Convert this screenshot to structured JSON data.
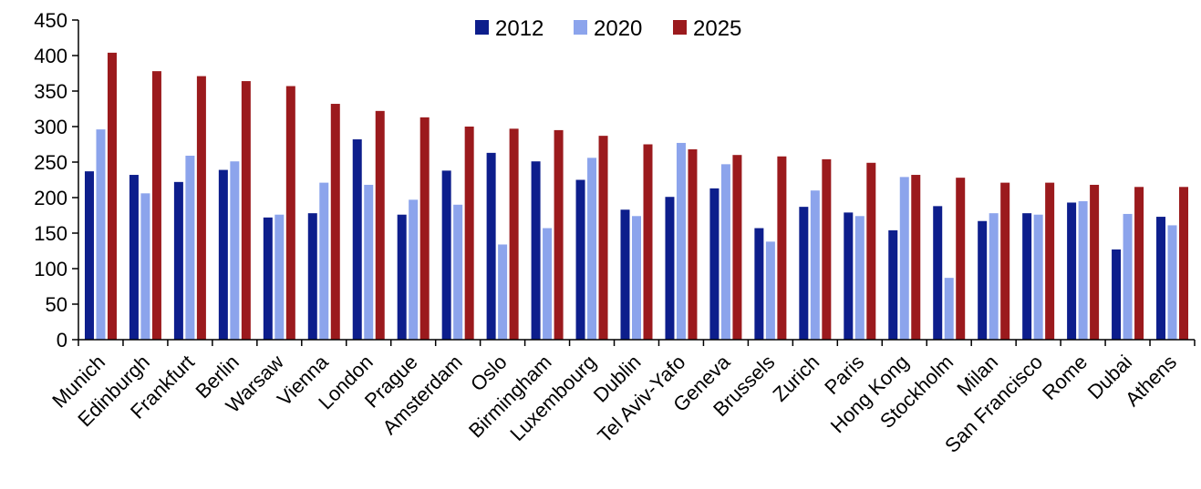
{
  "chart_data": {
    "type": "bar",
    "title": "",
    "xlabel": "",
    "ylabel": "",
    "ylim": [
      0,
      450
    ],
    "yticks": [
      0,
      50,
      100,
      150,
      200,
      250,
      300,
      350,
      400,
      450
    ],
    "grid": false,
    "legend_position": "top-center",
    "categories": [
      "Munich",
      "Edinburgh",
      "Frankfurt",
      "Berlin",
      "Warsaw",
      "Vienna",
      "London",
      "Prague",
      "Amsterdam",
      "Oslo",
      "Birmingham",
      "Luxembourg",
      "Dublin",
      "Tel Aviv-Yafo",
      "Geneva",
      "Brussels",
      "Zurich",
      "Paris",
      "Hong Kong",
      "Stockholm",
      "Milan",
      "San Francisco",
      "Rome",
      "Dubai",
      "Athens"
    ],
    "series": [
      {
        "name": "2012",
        "color": "#0d1e8c",
        "values": [
          237,
          232,
          222,
          239,
          172,
          178,
          282,
          176,
          238,
          263,
          251,
          225,
          183,
          201,
          213,
          157,
          187,
          179,
          154,
          188,
          167,
          178,
          193,
          127,
          173
        ]
      },
      {
        "name": "2020",
        "color": "#8ca4ec",
        "values": [
          296,
          206,
          259,
          251,
          176,
          221,
          218,
          197,
          190,
          134,
          157,
          256,
          174,
          277,
          247,
          138,
          210,
          174,
          229,
          87,
          178,
          176,
          195,
          177,
          161
        ]
      },
      {
        "name": "2025",
        "color": "#9b1a1d",
        "values": [
          404,
          378,
          371,
          364,
          357,
          332,
          322,
          313,
          300,
          297,
          295,
          287,
          275,
          268,
          260,
          258,
          254,
          249,
          232,
          228,
          221,
          221,
          218,
          215,
          215
        ]
      }
    ]
  }
}
